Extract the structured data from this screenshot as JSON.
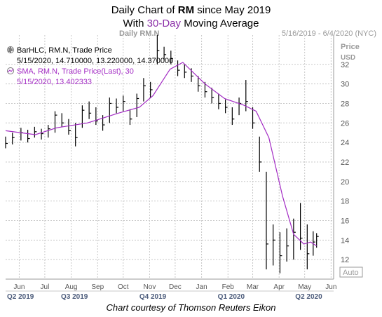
{
  "title": {
    "line1_prefix": "Daily Chart of ",
    "line1_ticker": "RM",
    "line1_suffix": " since May 2019",
    "line2_prefix": "With ",
    "line2_highlight": "30-Day",
    "line2_suffix": " Moving Average"
  },
  "header": {
    "chart_name": "Daily RM.N",
    "date_range": "5/16/2019 - 6/4/2020 (NYC)",
    "price_label": "Price",
    "currency_label": "USD",
    "auto_label": "Auto"
  },
  "legend": {
    "bar_line1": "BarHLC, RM.N, Trade Price",
    "bar_line2": "5/15/2020, 14.710000, 13.220000, 14.370000",
    "sma_line1": "SMA, RM.N, Trade Price(Last),  30",
    "sma_line2": "5/15/2020, 13.402333"
  },
  "footer": "Chart courtesy of Thomson Reuters Eikon",
  "colors": {
    "bars": "#000000",
    "sma": "#a32cc4",
    "grid": "#c8c8c8",
    "quarter_labels": "#4a5a7a"
  },
  "chart_data": {
    "type": "line",
    "ylim": [
      10,
      35
    ],
    "y_ticks": [
      12,
      14,
      16,
      18,
      20,
      22,
      24,
      26,
      28,
      30,
      32
    ],
    "x_start": "2019-05-16",
    "x_end": "2020-06-04",
    "month_ticks": [
      {
        "label": "Jun",
        "date": "2019-06-01"
      },
      {
        "label": "Jul",
        "date": "2019-07-01"
      },
      {
        "label": "Aug",
        "date": "2019-08-01"
      },
      {
        "label": "Sep",
        "date": "2019-09-01"
      },
      {
        "label": "Oct",
        "date": "2019-10-01"
      },
      {
        "label": "Nov",
        "date": "2019-11-01"
      },
      {
        "label": "Dec",
        "date": "2019-12-01"
      },
      {
        "label": "Jan",
        "date": "2020-01-01"
      },
      {
        "label": "Feb",
        "date": "2020-02-01"
      },
      {
        "label": "Mar",
        "date": "2020-03-01"
      },
      {
        "label": "Apr",
        "date": "2020-04-01"
      },
      {
        "label": "May",
        "date": "2020-05-01"
      },
      {
        "label": "Jun",
        "date": "2020-06-01"
      }
    ],
    "quarter_ticks": [
      {
        "label": "Q2 2019",
        "date": "2019-05-16"
      },
      {
        "label": "Q3 2019",
        "date": "2019-07-20"
      },
      {
        "label": "Q4 2019",
        "date": "2019-10-20"
      },
      {
        "label": "Q1 2020",
        "date": "2020-01-20"
      },
      {
        "label": "Q2 2020",
        "date": "2020-04-20"
      }
    ],
    "grid": true,
    "series": [
      {
        "name": "BarHLC, RM.N, Trade Price",
        "style": "hlc-bars",
        "points": [
          {
            "date": "2019-05-16",
            "high": 24.6,
            "low": 23.4,
            "close": 23.9
          },
          {
            "date": "2019-05-24",
            "high": 25.0,
            "low": 23.8,
            "close": 24.5
          },
          {
            "date": "2019-06-03",
            "high": 25.5,
            "low": 24.2,
            "close": 25.0
          },
          {
            "date": "2019-06-11",
            "high": 25.3,
            "low": 24.0,
            "close": 24.4
          },
          {
            "date": "2019-06-19",
            "high": 25.6,
            "low": 24.5,
            "close": 25.1
          },
          {
            "date": "2019-06-27",
            "high": 25.4,
            "low": 24.3,
            "close": 24.9
          },
          {
            "date": "2019-07-05",
            "high": 25.8,
            "low": 24.5,
            "close": 25.4
          },
          {
            "date": "2019-07-13",
            "high": 27.2,
            "low": 25.0,
            "close": 26.8
          },
          {
            "date": "2019-07-21",
            "high": 27.0,
            "low": 25.6,
            "close": 26.0
          },
          {
            "date": "2019-07-29",
            "high": 26.4,
            "low": 24.8,
            "close": 25.2
          },
          {
            "date": "2019-08-06",
            "high": 26.0,
            "low": 23.6,
            "close": 24.5
          },
          {
            "date": "2019-08-14",
            "high": 27.8,
            "low": 25.5,
            "close": 27.3
          },
          {
            "date": "2019-08-22",
            "high": 28.2,
            "low": 26.4,
            "close": 27.0
          },
          {
            "date": "2019-08-30",
            "high": 27.6,
            "low": 25.8,
            "close": 26.2
          },
          {
            "date": "2019-09-07",
            "high": 26.8,
            "low": 25.2,
            "close": 25.8
          },
          {
            "date": "2019-09-15",
            "high": 28.6,
            "low": 26.0,
            "close": 28.0
          },
          {
            "date": "2019-09-23",
            "high": 28.5,
            "low": 27.0,
            "close": 27.6
          },
          {
            "date": "2019-10-01",
            "high": 28.8,
            "low": 27.2,
            "close": 28.2
          },
          {
            "date": "2019-10-09",
            "high": 27.4,
            "low": 25.8,
            "close": 26.4
          },
          {
            "date": "2019-10-17",
            "high": 29.0,
            "low": 26.6,
            "close": 28.5
          },
          {
            "date": "2019-10-25",
            "high": 30.6,
            "low": 28.2,
            "close": 29.8
          },
          {
            "date": "2019-11-02",
            "high": 30.2,
            "low": 28.6,
            "close": 29.4
          },
          {
            "date": "2019-11-10",
            "high": 35.0,
            "low": 32.0,
            "close": 33.4
          },
          {
            "date": "2019-11-18",
            "high": 33.8,
            "low": 32.4,
            "close": 33.0
          },
          {
            "date": "2019-11-26",
            "high": 33.4,
            "low": 32.0,
            "close": 32.6
          },
          {
            "date": "2019-12-04",
            "high": 32.4,
            "low": 30.8,
            "close": 31.4
          },
          {
            "date": "2019-12-12",
            "high": 32.0,
            "low": 30.6,
            "close": 31.2
          },
          {
            "date": "2019-12-20",
            "high": 31.6,
            "low": 30.2,
            "close": 30.8
          },
          {
            "date": "2019-12-28",
            "high": 30.8,
            "low": 29.2,
            "close": 29.8
          },
          {
            "date": "2020-01-05",
            "high": 30.2,
            "low": 28.6,
            "close": 29.2
          },
          {
            "date": "2020-01-13",
            "high": 29.6,
            "low": 28.0,
            "close": 28.6
          },
          {
            "date": "2020-01-21",
            "high": 29.0,
            "low": 27.4,
            "close": 28.0
          },
          {
            "date": "2020-01-29",
            "high": 28.4,
            "low": 27.0,
            "close": 27.6
          },
          {
            "date": "2020-02-06",
            "high": 27.6,
            "low": 25.8,
            "close": 26.4
          },
          {
            "date": "2020-02-14",
            "high": 28.6,
            "low": 26.8,
            "close": 28.0
          },
          {
            "date": "2020-02-22",
            "high": 30.4,
            "low": 27.2,
            "close": 28.2
          },
          {
            "date": "2020-03-01",
            "high": 27.6,
            "low": 25.4,
            "close": 26.0
          },
          {
            "date": "2020-03-09",
            "high": 24.6,
            "low": 21.0,
            "close": 22.0
          },
          {
            "date": "2020-03-17",
            "high": 21.0,
            "low": 11.0,
            "close": 13.6
          },
          {
            "date": "2020-03-25",
            "high": 15.6,
            "low": 11.4,
            "close": 14.0
          },
          {
            "date": "2020-04-02",
            "high": 14.8,
            "low": 10.6,
            "close": 12.4
          },
          {
            "date": "2020-04-10",
            "high": 15.2,
            "low": 11.8,
            "close": 13.4
          },
          {
            "date": "2020-04-18",
            "high": 16.2,
            "low": 12.0,
            "close": 14.8
          },
          {
            "date": "2020-04-26",
            "high": 17.8,
            "low": 13.0,
            "close": 14.2
          },
          {
            "date": "2020-05-04",
            "high": 15.6,
            "low": 11.0,
            "close": 12.6
          },
          {
            "date": "2020-05-11",
            "high": 14.9,
            "low": 12.4,
            "close": 13.8
          },
          {
            "date": "2020-05-15",
            "high": 14.71,
            "low": 13.22,
            "close": 14.37
          }
        ]
      },
      {
        "name": "SMA, RM.N, Trade Price(Last),  30",
        "style": "line",
        "points": [
          {
            "date": "2019-05-16",
            "value": 25.2
          },
          {
            "date": "2019-06-20",
            "value": 24.8
          },
          {
            "date": "2019-07-15",
            "value": 25.5
          },
          {
            "date": "2019-08-20",
            "value": 26.0
          },
          {
            "date": "2019-09-25",
            "value": 27.0
          },
          {
            "date": "2019-10-20",
            "value": 27.6
          },
          {
            "date": "2019-11-05",
            "value": 28.8
          },
          {
            "date": "2019-11-25",
            "value": 31.5
          },
          {
            "date": "2019-12-10",
            "value": 32.2
          },
          {
            "date": "2020-01-05",
            "value": 30.0
          },
          {
            "date": "2020-01-28",
            "value": 28.5
          },
          {
            "date": "2020-02-20",
            "value": 27.8
          },
          {
            "date": "2020-03-05",
            "value": 27.2
          },
          {
            "date": "2020-03-20",
            "value": 24.5
          },
          {
            "date": "2020-04-05",
            "value": 18.5
          },
          {
            "date": "2020-04-18",
            "value": 14.6
          },
          {
            "date": "2020-04-30",
            "value": 13.6
          },
          {
            "date": "2020-05-08",
            "value": 13.8
          },
          {
            "date": "2020-05-15",
            "value": 13.402333
          }
        ]
      }
    ]
  }
}
